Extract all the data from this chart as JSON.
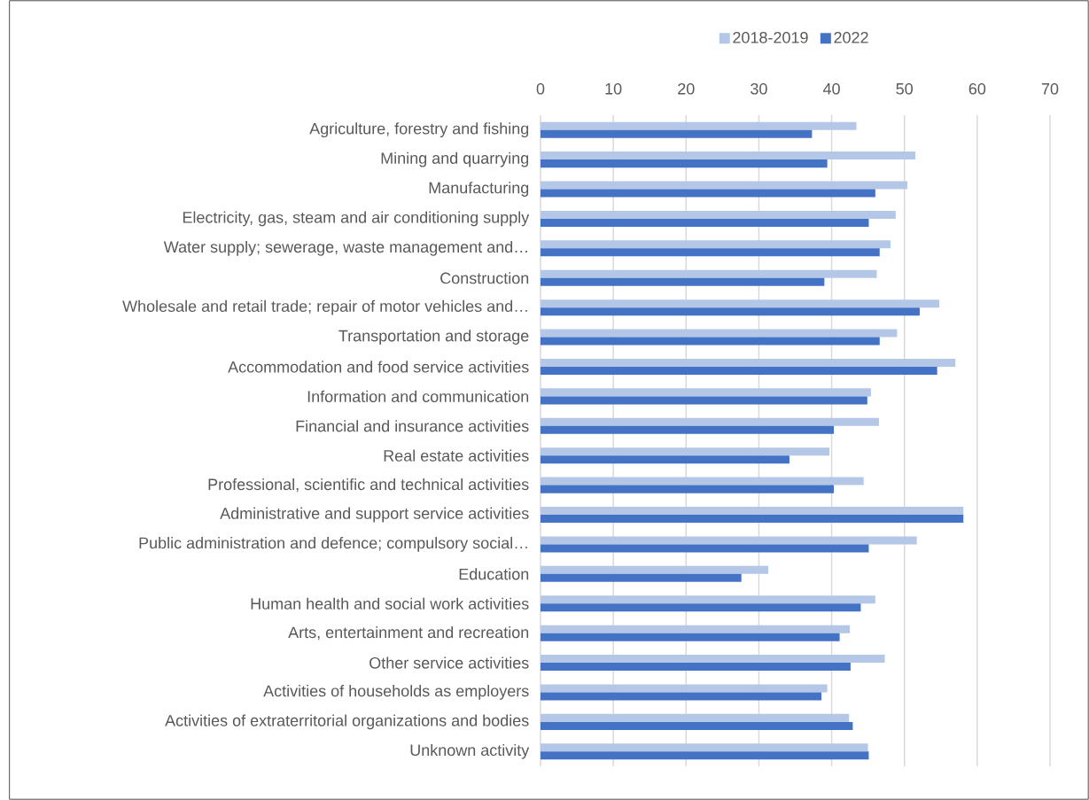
{
  "chart_data": {
    "type": "bar",
    "orientation": "horizontal",
    "categories": [
      "Agriculture, forestry and fishing",
      "Mining and quarrying",
      "Manufacturing",
      "Electricity, gas, steam and air conditioning supply",
      "Water supply; sewerage, waste management and…",
      "Construction",
      "Wholesale and retail trade; repair of motor vehicles and…",
      "Transportation and storage",
      "Accommodation and food service activities",
      "Information and communication",
      "Financial and insurance activities",
      "Real estate activities",
      "Professional, scientific and technical activities",
      "Administrative and support service activities",
      "Public administration and defence; compulsory social…",
      "Education",
      "Human health and social work activities",
      "Arts, entertainment and recreation",
      "Other service activities",
      "Activities of households as employers",
      "Activities of extraterritorial organizations and bodies",
      "Unknown activity"
    ],
    "series": [
      {
        "name": "2018-2019",
        "color": "#b4c7e7",
        "values": [
          43.4,
          51.5,
          50.4,
          48.8,
          48.1,
          46.2,
          54.8,
          49.0,
          57.0,
          45.4,
          46.5,
          39.7,
          44.4,
          58.1,
          51.7,
          31.3,
          46.0,
          42.5,
          47.3,
          39.4,
          42.4,
          45.0
        ]
      },
      {
        "name": "2022",
        "color": "#4472c4",
        "values": [
          37.3,
          39.4,
          46.0,
          45.1,
          46.6,
          39.0,
          52.1,
          46.6,
          54.5,
          44.9,
          40.3,
          34.2,
          40.3,
          58.1,
          45.1,
          27.6,
          44.0,
          41.1,
          42.6,
          38.6,
          42.9,
          45.1
        ]
      }
    ],
    "xlim": [
      0,
      70
    ],
    "xticks": [
      0,
      10,
      20,
      30,
      40,
      50,
      60,
      70
    ],
    "grid": "x",
    "legend": "top"
  }
}
